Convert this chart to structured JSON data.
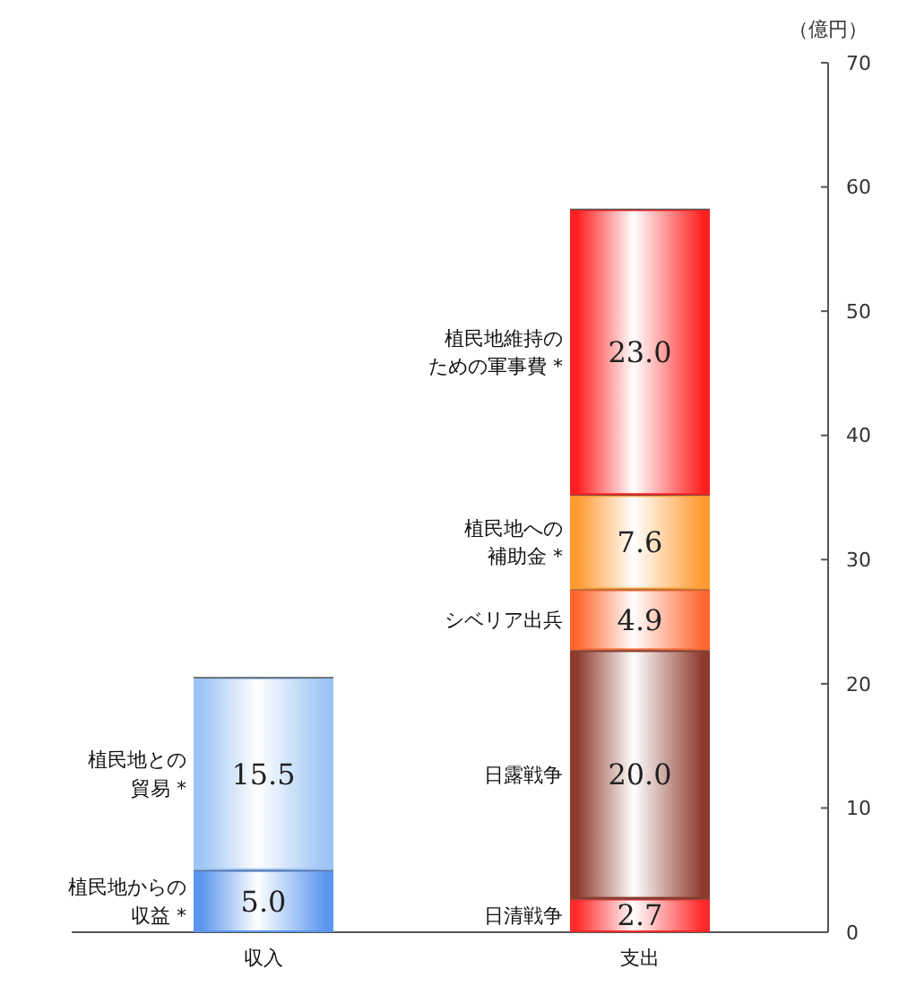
{
  "chart_data": {
    "type": "bar",
    "stacked": true,
    "categories": [
      "収入",
      "支出"
    ],
    "ylabel": "（億円）",
    "ylim": [
      0,
      70
    ],
    "yticks": [
      0,
      10,
      20,
      30,
      40,
      50,
      60,
      70
    ],
    "series": [
      {
        "name": "植民地からの収益 *",
        "color": "#5a96ee",
        "values": [
          5.0,
          null
        ],
        "value_labels": [
          "5.0",
          null
        ]
      },
      {
        "name": "植民地との貿易 *",
        "color": "#9cc4f4",
        "values": [
          15.5,
          null
        ],
        "value_labels": [
          "15.5",
          null
        ]
      },
      {
        "name": "日清戦争",
        "color": "#ff2a2a",
        "values": [
          null,
          2.7
        ],
        "value_labels": [
          null,
          "2.7"
        ]
      },
      {
        "name": "日露戦争",
        "color": "#8e3a2c",
        "values": [
          null,
          20.0
        ],
        "value_labels": [
          null,
          "20.0"
        ]
      },
      {
        "name": "シベリア出兵",
        "color": "#ff6630",
        "values": [
          null,
          4.9
        ],
        "value_labels": [
          null,
          "4.9"
        ]
      },
      {
        "name": "植民地への補助金 *",
        "color": "#ff9a30",
        "values": [
          null,
          7.6
        ],
        "value_labels": [
          null,
          "7.6"
        ]
      },
      {
        "name": "植民地維持のための軍事費 *",
        "color": "#ff2020",
        "values": [
          null,
          23.0
        ],
        "value_labels": [
          null,
          "23.0"
        ]
      }
    ]
  }
}
